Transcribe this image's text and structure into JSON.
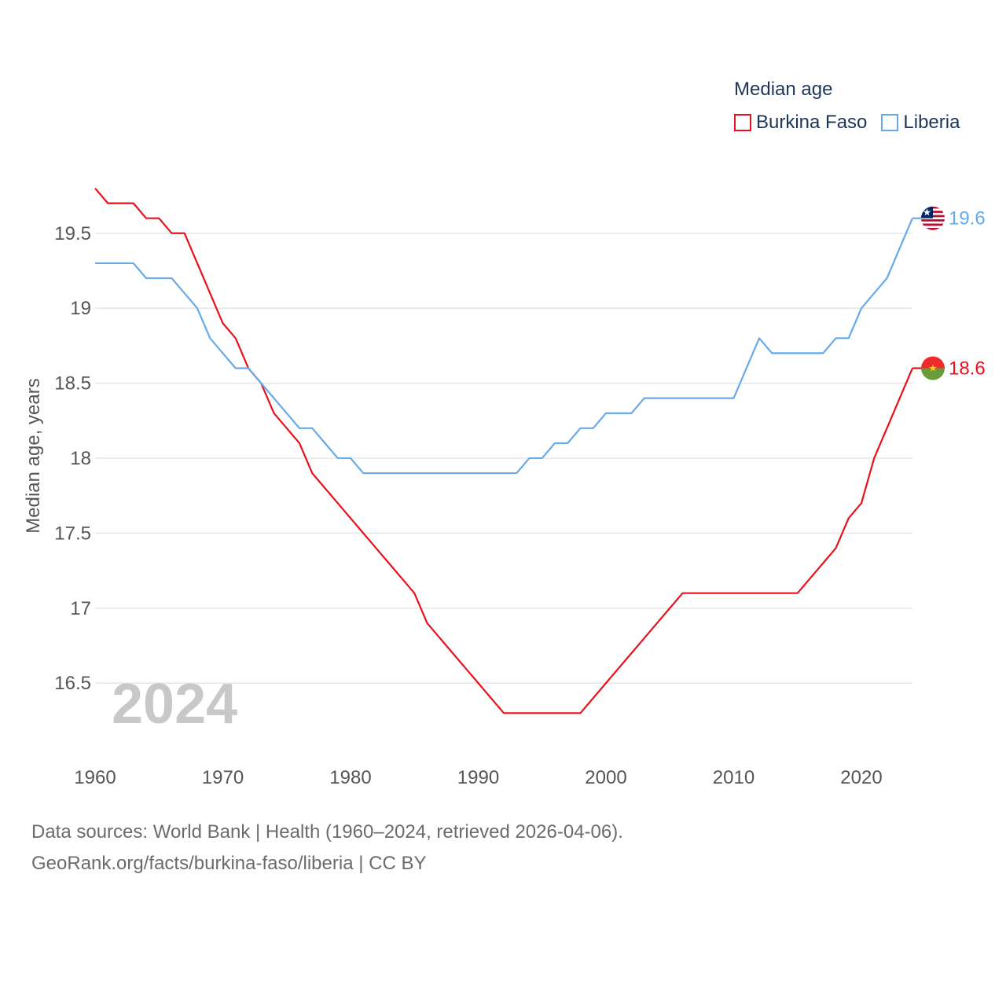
{
  "legend": {
    "title": "Median age"
  },
  "footer": {
    "line1": "Data sources: World Bank | Health (1960–2024, retrieved 2026-04-06).",
    "line2": "GeoRank.org/facts/burkina-faso/liberia | CC BY"
  },
  "colors": {
    "burkina_faso": "#e8111b",
    "liberia": "#66aaea",
    "grid": "#e6e6e6",
    "axis_text": "#555555",
    "year_watermark": "#c8c8c8"
  },
  "chart_data": {
    "type": "line",
    "title": "Median age",
    "xlabel": "",
    "ylabel": "Median age, years",
    "watermark_year": "2024",
    "xlim": [
      1960,
      2024
    ],
    "ylim": [
      16.05,
      19.85
    ],
    "x_ticks": [
      1960,
      1970,
      1980,
      1990,
      2000,
      2010,
      2020
    ],
    "y_ticks": [
      16.5,
      17,
      17.5,
      18,
      18.5,
      19,
      19.5
    ],
    "y_tick_labels": [
      "16.5",
      "17",
      "17.5",
      "18",
      "18.5",
      "19",
      "19.5"
    ],
    "grid": true,
    "legend_position": "top-right",
    "x": [
      1960,
      1961,
      1962,
      1963,
      1964,
      1965,
      1966,
      1967,
      1968,
      1969,
      1970,
      1971,
      1972,
      1973,
      1974,
      1975,
      1976,
      1977,
      1978,
      1979,
      1980,
      1981,
      1982,
      1983,
      1984,
      1985,
      1986,
      1987,
      1988,
      1989,
      1990,
      1991,
      1992,
      1993,
      1994,
      1995,
      1996,
      1997,
      1998,
      1999,
      2000,
      2001,
      2002,
      2003,
      2004,
      2005,
      2006,
      2007,
      2008,
      2009,
      2010,
      2011,
      2012,
      2013,
      2014,
      2015,
      2016,
      2017,
      2018,
      2019,
      2020,
      2021,
      2022,
      2023,
      2024
    ],
    "series": [
      {
        "name": "Burkina Faso",
        "key": "burkina_faso",
        "end_label": "18.6",
        "flag": "burkina-faso-flag-icon",
        "values": [
          19.8,
          19.7,
          19.7,
          19.7,
          19.6,
          19.6,
          19.5,
          19.5,
          19.3,
          19.1,
          18.9,
          18.8,
          18.6,
          18.5,
          18.3,
          18.2,
          18.1,
          17.9,
          17.8,
          17.7,
          17.6,
          17.5,
          17.4,
          17.3,
          17.2,
          17.1,
          16.9,
          16.8,
          16.7,
          16.6,
          16.5,
          16.4,
          16.3,
          16.3,
          16.3,
          16.3,
          16.3,
          16.3,
          16.3,
          16.4,
          16.5,
          16.6,
          16.7,
          16.8,
          16.9,
          17.0,
          17.1,
          17.1,
          17.1,
          17.1,
          17.1,
          17.1,
          17.1,
          17.1,
          17.1,
          17.1,
          17.2,
          17.3,
          17.4,
          17.6,
          17.7,
          18.0,
          18.2,
          18.4,
          18.6
        ]
      },
      {
        "name": "Liberia",
        "key": "liberia",
        "end_label": "19.6",
        "flag": "liberia-flag-icon",
        "values": [
          19.3,
          19.3,
          19.3,
          19.3,
          19.2,
          19.2,
          19.2,
          19.1,
          19.0,
          18.8,
          18.7,
          18.6,
          18.6,
          18.5,
          18.4,
          18.3,
          18.2,
          18.2,
          18.1,
          18.0,
          18.0,
          17.9,
          17.9,
          17.9,
          17.9,
          17.9,
          17.9,
          17.9,
          17.9,
          17.9,
          17.9,
          17.9,
          17.9,
          17.9,
          18.0,
          18.0,
          18.1,
          18.1,
          18.2,
          18.2,
          18.3,
          18.3,
          18.3,
          18.4,
          18.4,
          18.4,
          18.4,
          18.4,
          18.4,
          18.4,
          18.4,
          18.6,
          18.8,
          18.7,
          18.7,
          18.7,
          18.7,
          18.7,
          18.8,
          18.8,
          19.0,
          19.1,
          19.2,
          19.4,
          19.6
        ]
      }
    ]
  }
}
